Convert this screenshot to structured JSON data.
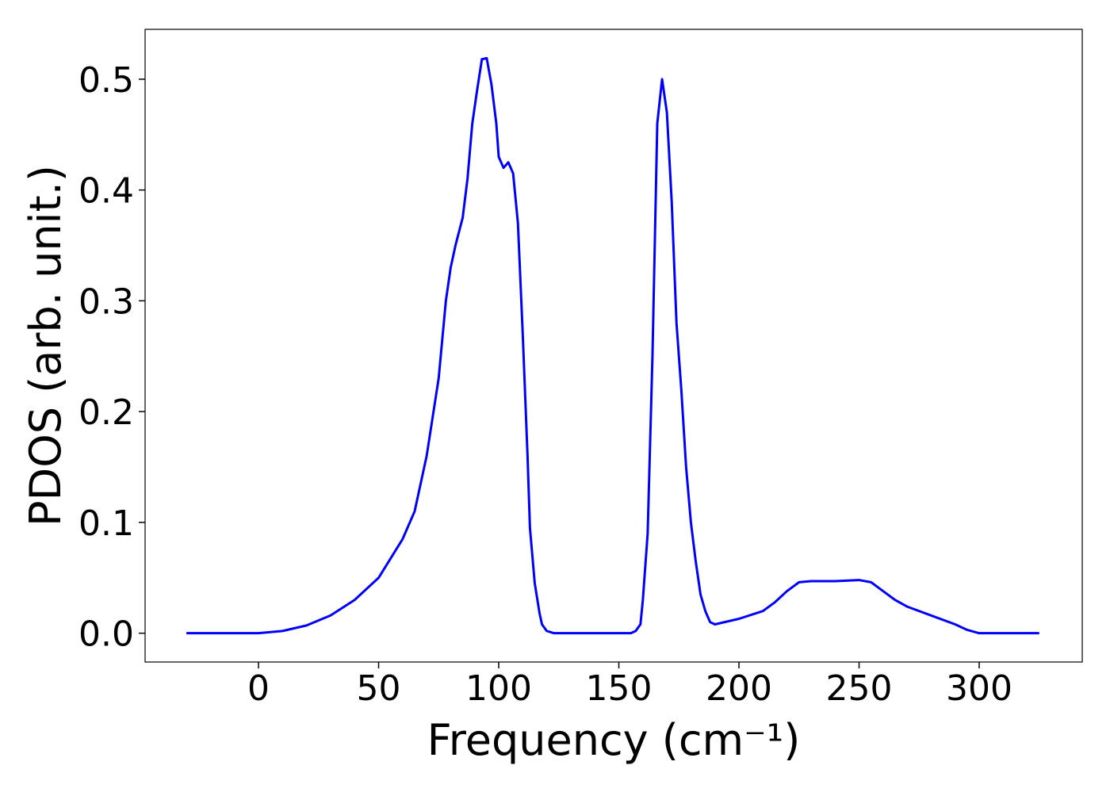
{
  "chart_data": {
    "type": "line",
    "xlabel": "Frequency (cm⁻¹)",
    "ylabel": "PDOS (arb. unit.)",
    "x": [
      -30,
      -20,
      -10,
      0,
      10,
      20,
      30,
      40,
      50,
      60,
      65,
      70,
      75,
      78,
      80,
      82,
      85,
      87,
      89,
      91,
      93,
      95,
      97,
      99,
      100,
      102,
      104,
      106,
      108,
      110,
      112,
      113,
      115,
      117,
      118,
      120,
      123,
      130,
      140,
      150,
      155,
      157,
      159,
      160,
      162,
      164,
      166,
      168,
      170,
      172,
      174,
      176,
      178,
      180,
      182,
      184,
      186,
      188,
      190,
      200,
      210,
      215,
      220,
      225,
      230,
      240,
      250,
      255,
      260,
      265,
      270,
      280,
      290,
      295,
      300,
      310,
      325
    ],
    "series": [
      {
        "name": "PDOS",
        "color": "#0000ff",
        "values": [
          0,
          0,
          0,
          0,
          0.002,
          0.007,
          0.016,
          0.03,
          0.05,
          0.085,
          0.11,
          0.16,
          0.23,
          0.3,
          0.33,
          0.35,
          0.375,
          0.41,
          0.46,
          0.49,
          0.518,
          0.519,
          0.495,
          0.46,
          0.43,
          0.42,
          0.425,
          0.415,
          0.37,
          0.27,
          0.16,
          0.095,
          0.045,
          0.018,
          0.008,
          0.002,
          0,
          0,
          0,
          0,
          0,
          0.002,
          0.008,
          0.03,
          0.09,
          0.25,
          0.46,
          0.5,
          0.47,
          0.39,
          0.28,
          0.22,
          0.15,
          0.1,
          0.065,
          0.035,
          0.02,
          0.01,
          0.008,
          0.013,
          0.02,
          0.028,
          0.038,
          0.046,
          0.047,
          0.047,
          0.048,
          0.046,
          0.038,
          0.03,
          0.024,
          0.016,
          0.008,
          0.003,
          0,
          0,
          0
        ]
      }
    ],
    "xlim": [
      -47.2,
      342.9
    ],
    "ylim": [
      -0.026,
      0.545
    ],
    "xticks": [
      0,
      50,
      100,
      150,
      200,
      250,
      300
    ],
    "yticks": [
      {
        "value": 0,
        "label": "0.0"
      },
      0.1,
      0.2,
      0.3,
      0.4,
      0.5
    ],
    "grid": false
  }
}
